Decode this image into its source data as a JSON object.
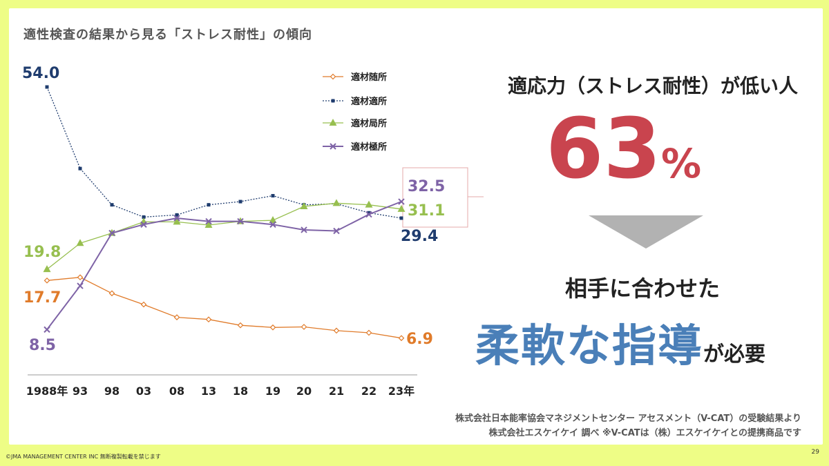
{
  "slide": {
    "title": "適性検査の結果から見る「ストレス耐性」の傾向",
    "headline": "適応力（ストレス耐性）が低い人",
    "big_number": "63",
    "big_unit": "%",
    "message_line1": "相手に合わせた",
    "message_strong": "柔軟な指導",
    "message_rest": "が必要",
    "source_line1": "株式会社日本能率協会マネジメントセンター アセスメント（V-CAT）の受験結果より",
    "source_line2": "株式会社エスケイケイ 調べ ※V-CATは（株）エスケイケイとの提携商品です",
    "footer_left": "©JMA MANAGEMENT CENTER INC 無断複製転載を禁じます",
    "page_number": "29"
  },
  "chart_data": {
    "type": "line",
    "categories": [
      "1988年",
      "93",
      "98",
      "03",
      "08",
      "13",
      "18",
      "19",
      "20",
      "21",
      "22",
      "23年"
    ],
    "ylim": [
      0,
      58
    ],
    "grid": false,
    "legend_position": "top-center",
    "series": [
      {
        "name": "適材随所",
        "color": "#e07b2a",
        "marker": "diamond",
        "dash": "solid",
        "values": [
          17.7,
          18.3,
          15.3,
          13.2,
          10.8,
          10.4,
          9.3,
          8.9,
          9.0,
          8.3,
          7.9,
          6.9
        ],
        "first_label": "17.7",
        "last_label": "6.9"
      },
      {
        "name": "適材適所",
        "color": "#1f3c6e",
        "marker": "square",
        "dash": "dotted",
        "values": [
          54.0,
          38.7,
          31.9,
          29.6,
          30.0,
          31.9,
          32.5,
          33.6,
          31.9,
          32.1,
          30.4,
          29.4
        ],
        "first_label": "54.0",
        "last_label": "29.4"
      },
      {
        "name": "適材局所",
        "color": "#97bf4f",
        "marker": "triangle",
        "dash": "solid",
        "values": [
          19.8,
          24.7,
          26.6,
          28.7,
          28.7,
          28.1,
          28.8,
          29.0,
          31.6,
          32.2,
          31.9,
          31.1
        ],
        "first_label": "19.8",
        "last_label": "31.1"
      },
      {
        "name": "適材極所",
        "color": "#7e63a6",
        "marker": "x",
        "dash": "solid",
        "values": [
          8.5,
          16.7,
          26.6,
          28.2,
          29.4,
          28.8,
          28.8,
          28.2,
          27.2,
          27.0,
          30.1,
          32.5
        ],
        "first_label": "8.5",
        "last_label": "32.5"
      }
    ]
  }
}
